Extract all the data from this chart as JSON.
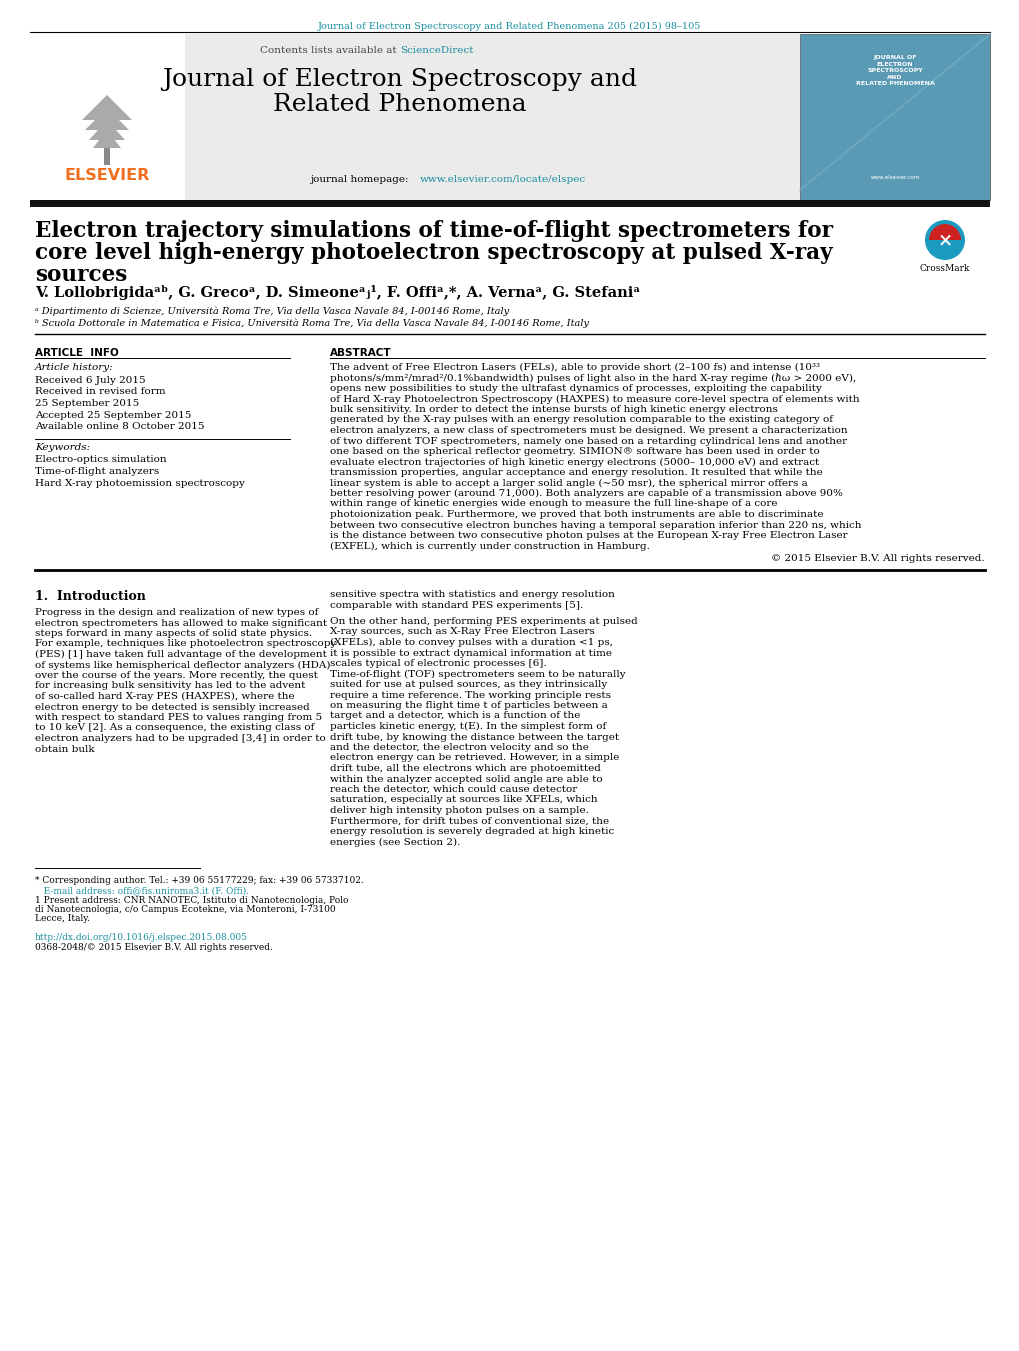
{
  "page_bg": "#ffffff",
  "top_journal_ref": "Journal of Electron Spectroscopy and Related Phenomena 205 (2015) 98–105",
  "top_ref_color": "#1a8fa0",
  "header_link_color": "#1a8fa0",
  "elsevier_color": "#f07020",
  "affil_a": "ᵃ Dipartimento di Scienze, Università Roma Tre, Via della Vasca Navale 84, I-00146 Rome, Italy",
  "affil_b": "ᵇ Scuola Dottorale in Matematica e Fisica, Università Roma Tre, Via della Vasca Navale 84, I-00146 Rome, Italy",
  "article_info_title": "ARTICLE  INFO",
  "article_history_title": "Article history:",
  "keywords_title": "Keywords:",
  "keywords": [
    "Electro-optics simulation",
    "Time-of-flight analyzers",
    "Hard X-ray photoemission spectroscopy"
  ],
  "history_lines": [
    "Received 6 July 2015",
    "Received in revised form",
    "25 September 2015",
    "Accepted 25 September 2015",
    "Available online 8 October 2015"
  ],
  "abstract_title": "ABSTRACT",
  "abstract_text": "The advent of Free Electron Lasers (FELs), able to provide short (2–100 fs) and intense (10³³ photons/s/mm²/mrad²/0.1%bandwidth) pulses of light also in the hard X-ray regime (ℏω > 2000 eV), opens new possibilities to study the ultrafast dynamics of processes, exploiting the capability of Hard X-ray Photoelectron Spectroscopy (HAXPES) to measure core-level spectra of elements with bulk sensitivity. In order to detect the intense bursts of high kinetic energy electrons generated by the X-ray pulses with an energy resolution comparable to the existing category of electron analyzers, a new class of spectrometers must be designed. We present a characterization of two different TOF spectrometers, namely one based on a retarding cylindrical lens and another one based on the spherical reflector geometry. SIMION® software has been used in order to evaluate electron trajectories of high kinetic energy electrons (5000– 10,000 eV) and extract transmission properties, angular acceptance and energy resolution. It resulted that while the linear system is able to accept a larger solid angle (~50 msr), the spherical mirror offers a better resolving power (around 71,000). Both analyzers are capable of a transmission above 90% within range of kinetic energies wide enough to measure the full line-shape of a core photoionization peak. Furthermore, we proved that both instruments are able to discriminate between two consecutive electron bunches having a temporal separation inferior than 220 ns, which is the distance between two consecutive photon pulses at the European X-ray Free Electron Laser (EXFEL), which is currently under construction in Hamburg.",
  "copyright": "© 2015 Elsevier B.V. All rights reserved.",
  "intro_title": "1.  Introduction",
  "intro_left": "    Progress in the design and realization of new types of electron spectrometers has allowed to make significant steps forward in many aspects of solid state physics. For example, techniques like photoelectron spectroscopy (PES) [1] have taken full advantage of the development of systems like hemispherical deflector analyzers (HDA) over the course of the years. More recently, the quest for increasing bulk sensitivity has led to the advent of so-called hard X-ray PES (HAXPES), where the electron energy to be detected is sensibly increased with respect to standard PES to values ranging from 5 to 10 keV [2]. As a consequence, the existing class of electron analyzers had to be upgraded [3,4] in order to obtain bulk",
  "intro_right_1": "sensitive spectra with statistics and energy resolution comparable with standard PES experiments [5].",
  "intro_right_2": "    On the other hand, performing PES experiments at pulsed X-ray sources, such as X-Ray Free Electron Lasers (XFELs), able to convey pulses with a duration <1 ps, it is possible to extract dynamical information at time scales typical of electronic processes [6]. Time-of-flight (TOF) spectrometers seem to be naturally suited for use at pulsed sources, as they intrinsically require a time reference. The working principle rests on measuring the flight time t of particles between a target and a detector, which is a function of the particles kinetic energy, t(E). In the simplest form of drift tube, by knowing the distance between the target and the detector, the electron velocity and so the electron energy can be retrieved. However, in a simple drift tube, all the electrons which are photoemitted within the analyzer accepted solid angle are able to reach the detector, which could cause detector saturation, especially at sources like XFELs, which deliver high intensity photon pulses on a sample. Furthermore, for drift tubes of conventional size, the energy resolution is severely degraded at high kinetic energies (see Section 2).",
  "footnote_star": "* Corresponding author. Tel.: +39 06 55177229; fax: +39 06 57337102.",
  "footnote_email": "   E-mail address: offi@fis.uniroma3.it (F. Offi).",
  "footnote_1": "1 Present address: CNR NANOTEC, Istituto di Nanotecnologia, Polo di Nanotecnologia, c/o Campus Ecotekne, via Monteroni, I-73100 Lecce, Italy.",
  "doi": "http://dx.doi.org/10.1016/j.elspec.2015.08.005",
  "issn": "0368-2048/© 2015 Elsevier B.V. All rights reserved."
}
